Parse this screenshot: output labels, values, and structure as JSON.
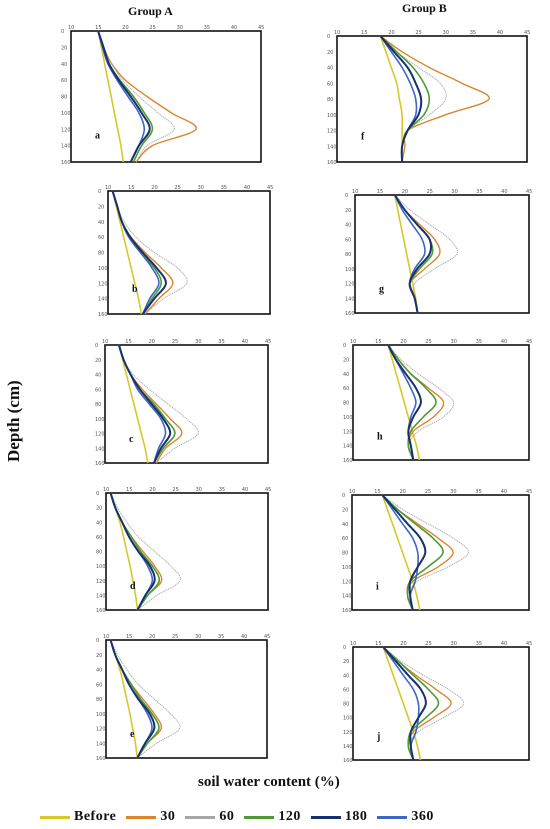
{
  "header": {
    "group_a": "Group A",
    "group_b": "Group B"
  },
  "axes": {
    "y_title": "Depth (cm)",
    "x_title": "soil water content (%)"
  },
  "legend": [
    {
      "label": "Before",
      "color": "#d9c82a"
    },
    {
      "label": "30",
      "color": "#d9862f"
    },
    {
      "label": "60",
      "color": "#a6a6a6"
    },
    {
      "label": "120",
      "color": "#4f9a34"
    },
    {
      "label": "180",
      "color": "#17306e"
    },
    {
      "label": "360",
      "color": "#3c67c4"
    }
  ],
  "chart_data": [
    {
      "type": "line",
      "panel": "a",
      "group": "Group A",
      "ylabel": "Depth (cm)",
      "xlabel": "soil water content (%)",
      "depth": [
        0,
        20,
        40,
        60,
        80,
        100,
        120,
        140,
        160
      ],
      "series": [
        {
          "name": "Before",
          "values": [
            15,
            15.6,
            16.2,
            16.8,
            17.4,
            18,
            18.6,
            19.2,
            19.6
          ]
        },
        {
          "name": "30",
          "values": [
            15,
            16,
            17.5,
            20,
            24,
            28.5,
            33,
            25,
            22
          ]
        },
        {
          "name": "60",
          "values": [
            15,
            16,
            17.5,
            19.5,
            22.5,
            26,
            29,
            24,
            22
          ]
        },
        {
          "name": "120",
          "values": [
            15,
            16,
            17,
            19,
            21.5,
            23.5,
            25,
            23,
            21.5
          ]
        },
        {
          "name": "180",
          "values": [
            15,
            16,
            17,
            18.8,
            21,
            23,
            24.5,
            22.5,
            21
          ]
        },
        {
          "name": "360",
          "values": [
            15,
            15.8,
            16.8,
            18.5,
            20.5,
            22.5,
            23.5,
            22.5,
            21
          ]
        }
      ]
    },
    {
      "type": "line",
      "panel": "f",
      "group": "Group B",
      "ylabel": "Depth (cm)",
      "xlabel": "soil water content (%)",
      "depth": [
        0,
        20,
        40,
        60,
        80,
        100,
        120,
        140,
        160
      ],
      "series": [
        {
          "name": "Before",
          "values": [
            18,
            19,
            20,
            21,
            21.5,
            22,
            22,
            22,
            22
          ]
        },
        {
          "name": "30",
          "values": [
            18,
            22,
            27,
            33,
            38,
            30,
            23,
            22.5,
            22
          ]
        },
        {
          "name": "60",
          "values": [
            18,
            21,
            25,
            29,
            30,
            27,
            23,
            22,
            22
          ]
        },
        {
          "name": "120",
          "values": [
            18,
            21,
            24,
            26,
            27,
            26,
            23,
            22,
            22
          ]
        },
        {
          "name": "180",
          "values": [
            18,
            20.5,
            23,
            24.5,
            25.5,
            25,
            23,
            22,
            22
          ]
        },
        {
          "name": "360",
          "values": [
            18,
            20,
            22,
            23.5,
            24.5,
            24.5,
            23,
            22,
            22
          ]
        }
      ]
    },
    {
      "type": "line",
      "panel": "b",
      "group": "Group A",
      "ylabel": "Depth (cm)",
      "xlabel": "soil water content (%)",
      "depth": [
        0,
        20,
        40,
        60,
        80,
        100,
        120,
        140,
        160
      ],
      "series": [
        {
          "name": "Before",
          "values": [
            11,
            11.8,
            12.6,
            13.4,
            14.2,
            15,
            15.8,
            16.6,
            17.2
          ]
        },
        {
          "name": "30",
          "values": [
            11,
            12,
            13,
            15,
            18,
            21.5,
            24,
            21,
            18
          ]
        },
        {
          "name": "60",
          "values": [
            11,
            12,
            13.5,
            16,
            20,
            25,
            27,
            22,
            18
          ]
        },
        {
          "name": "120",
          "values": [
            11,
            12,
            13,
            14.5,
            17,
            20,
            21.5,
            19.5,
            17.5
          ]
        },
        {
          "name": "180",
          "values": [
            11,
            12,
            13,
            14.8,
            17.5,
            20.5,
            22.5,
            20,
            17.5
          ]
        },
        {
          "name": "360",
          "values": [
            11,
            12,
            13,
            14.5,
            17,
            19.5,
            21,
            19,
            17.5
          ]
        }
      ]
    },
    {
      "type": "line",
      "panel": "g",
      "group": "Group B",
      "ylabel": "Depth (cm)",
      "xlabel": "soil water content (%)",
      "depth": [
        0,
        20,
        40,
        60,
        80,
        100,
        120,
        140,
        160
      ],
      "series": [
        {
          "name": "Before",
          "values": [
            18,
            18.6,
            19.2,
            19.8,
            20.4,
            21,
            21.6,
            22.2,
            22.6
          ]
        },
        {
          "name": "30",
          "values": [
            18,
            20,
            23,
            26,
            27,
            24,
            21,
            22,
            22.6
          ]
        },
        {
          "name": "60",
          "values": [
            18,
            21,
            25,
            29,
            30.5,
            26,
            22,
            22,
            22.6
          ]
        },
        {
          "name": "120",
          "values": [
            18,
            20,
            22.5,
            25,
            25.5,
            23,
            21,
            22,
            22.6
          ]
        },
        {
          "name": "180",
          "values": [
            18,
            20,
            22.5,
            25,
            25,
            22.5,
            21,
            22,
            22.6
          ]
        },
        {
          "name": "360",
          "values": [
            18,
            19.5,
            21.5,
            23.5,
            24,
            22,
            21,
            22,
            22.6
          ]
        }
      ]
    },
    {
      "type": "line",
      "panel": "c",
      "group": "Group A",
      "ylabel": "Depth (cm)",
      "xlabel": "soil water content (%)",
      "depth": [
        0,
        20,
        40,
        60,
        80,
        100,
        120,
        140,
        160
      ],
      "series": [
        {
          "name": "Before",
          "values": [
            13,
            13.8,
            14.6,
            15.4,
            16.2,
            17,
            17.8,
            18.6,
            19.2
          ]
        },
        {
          "name": "30",
          "values": [
            13,
            14,
            15.5,
            18,
            21,
            24,
            26.5,
            23,
            21
          ]
        },
        {
          "name": "60",
          "values": [
            13,
            14,
            16,
            19.5,
            23.5,
            27.5,
            30,
            25,
            21
          ]
        },
        {
          "name": "120",
          "values": [
            13,
            14,
            15.5,
            17.5,
            20.5,
            23,
            25,
            22.5,
            20.5
          ]
        },
        {
          "name": "180",
          "values": [
            13,
            14,
            15.5,
            17.5,
            20,
            22.5,
            24,
            22,
            20.5
          ]
        },
        {
          "name": "360",
          "values": [
            13,
            14,
            15.5,
            17,
            19.5,
            22,
            23,
            21.5,
            20.5
          ]
        }
      ]
    },
    {
      "type": "line",
      "panel": "h",
      "group": "Group B",
      "ylabel": "Depth (cm)",
      "xlabel": "soil water content (%)",
      "depth": [
        0,
        20,
        40,
        60,
        80,
        100,
        120,
        140,
        160
      ],
      "series": [
        {
          "name": "Before",
          "values": [
            17,
            17.8,
            18.6,
            19.4,
            20.2,
            21,
            21.8,
            22.6,
            23.2
          ]
        },
        {
          "name": "30",
          "values": [
            17,
            19,
            21.5,
            25,
            28,
            26,
            22,
            21,
            22
          ]
        },
        {
          "name": "60",
          "values": [
            17,
            19.5,
            23,
            27,
            30,
            28,
            23,
            21,
            22
          ]
        },
        {
          "name": "120",
          "values": [
            17,
            19,
            21.5,
            24.5,
            26.5,
            24,
            21.5,
            21,
            22
          ]
        },
        {
          "name": "180",
          "values": [
            17,
            18.5,
            20.5,
            22.5,
            23.5,
            22,
            21,
            21.5,
            22
          ]
        },
        {
          "name": "360",
          "values": [
            17,
            18.5,
            20,
            21.5,
            22.5,
            21.5,
            21,
            21.5,
            22
          ]
        }
      ]
    },
    {
      "type": "line",
      "panel": "d",
      "group": "Group A",
      "ylabel": "Depth (cm)",
      "xlabel": "soil water content (%)",
      "depth": [
        0,
        20,
        40,
        60,
        80,
        100,
        120,
        140,
        160
      ],
      "series": [
        {
          "name": "Before",
          "values": [
            11,
            12,
            13,
            13.8,
            14.5,
            15.2,
            15.8,
            16.4,
            16.8
          ]
        },
        {
          "name": "30",
          "values": [
            11,
            12,
            13.5,
            15.5,
            18,
            20.5,
            22,
            19,
            16.8
          ]
        },
        {
          "name": "60",
          "values": [
            11,
            12.5,
            14.5,
            17,
            20.5,
            24,
            26,
            21,
            16.8
          ]
        },
        {
          "name": "120",
          "values": [
            11,
            12,
            13.5,
            15.5,
            17.5,
            20,
            21.5,
            19,
            16.8
          ]
        },
        {
          "name": "180",
          "values": [
            11,
            12,
            13.5,
            15,
            17,
            19.5,
            20.5,
            18.5,
            16.8
          ]
        },
        {
          "name": "360",
          "values": [
            11,
            12,
            13.5,
            15,
            17,
            19,
            20,
            18.5,
            16.8
          ]
        }
      ]
    },
    {
      "type": "line",
      "panel": "i",
      "group": "Group B",
      "ylabel": "Depth (cm)",
      "xlabel": "soil water content (%)",
      "depth": [
        0,
        20,
        40,
        60,
        80,
        100,
        120,
        140,
        160
      ],
      "series": [
        {
          "name": "Before",
          "values": [
            16,
            17,
            18,
            19,
            20,
            21,
            22,
            22.8,
            23.4
          ]
        },
        {
          "name": "30",
          "values": [
            16,
            19,
            23,
            27,
            30,
            27,
            22,
            21,
            22
          ]
        },
        {
          "name": "60",
          "values": [
            16,
            20,
            25,
            30,
            33,
            29,
            23,
            21,
            22
          ]
        },
        {
          "name": "120",
          "values": [
            16,
            19,
            22.5,
            26,
            28,
            25,
            21.5,
            21,
            22
          ]
        },
        {
          "name": "180",
          "values": [
            16,
            18.5,
            21,
            23.5,
            24.5,
            23,
            21.5,
            21.5,
            22
          ]
        },
        {
          "name": "360",
          "values": [
            16,
            18,
            20,
            22,
            23,
            23,
            22.5,
            21.5,
            22
          ]
        }
      ]
    },
    {
      "type": "line",
      "panel": "e",
      "group": "Group A",
      "ylabel": "Depth (cm)",
      "xlabel": "soil water content (%)",
      "depth": [
        0,
        20,
        40,
        60,
        80,
        100,
        120,
        140,
        160
      ],
      "series": [
        {
          "name": "Before",
          "values": [
            11,
            12,
            13,
            13.8,
            14.5,
            15.2,
            15.8,
            16.4,
            16.8
          ]
        },
        {
          "name": "30",
          "values": [
            11,
            12,
            13.5,
            15.5,
            18,
            20.5,
            22,
            19,
            16.8
          ]
        },
        {
          "name": "60",
          "values": [
            11,
            12.5,
            14.5,
            17,
            20.5,
            24,
            26,
            21,
            16.8
          ]
        },
        {
          "name": "120",
          "values": [
            11,
            12,
            13.5,
            15.5,
            17.5,
            20,
            21.5,
            19,
            16.8
          ]
        },
        {
          "name": "180",
          "values": [
            11,
            12,
            13.5,
            15,
            17,
            19.5,
            20.5,
            18.5,
            16.8
          ]
        },
        {
          "name": "360",
          "values": [
            11,
            12,
            13.5,
            15,
            17,
            19,
            20,
            18.5,
            16.8
          ]
        }
      ]
    },
    {
      "type": "line",
      "panel": "j",
      "group": "Group B",
      "ylabel": "Depth (cm)",
      "xlabel": "soil water content (%)",
      "depth": [
        0,
        20,
        40,
        60,
        80,
        100,
        120,
        140,
        160
      ],
      "series": [
        {
          "name": "Before",
          "values": [
            16,
            17,
            18,
            19,
            20,
            21,
            22,
            22.8,
            23.4
          ]
        },
        {
          "name": "30",
          "values": [
            16,
            19,
            22.5,
            26.5,
            29.5,
            26,
            22,
            21,
            22
          ]
        },
        {
          "name": "60",
          "values": [
            16,
            19.5,
            24,
            29,
            32,
            28,
            23,
            21,
            22
          ]
        },
        {
          "name": "120",
          "values": [
            16,
            19,
            22,
            25,
            27,
            24.5,
            21.5,
            21,
            22
          ]
        },
        {
          "name": "180",
          "values": [
            16,
            18.5,
            21,
            23.5,
            24.5,
            23,
            21.5,
            21.5,
            22
          ]
        },
        {
          "name": "360",
          "values": [
            16,
            18,
            20,
            22,
            23,
            23,
            22.5,
            21.5,
            22
          ]
        }
      ]
    }
  ]
}
